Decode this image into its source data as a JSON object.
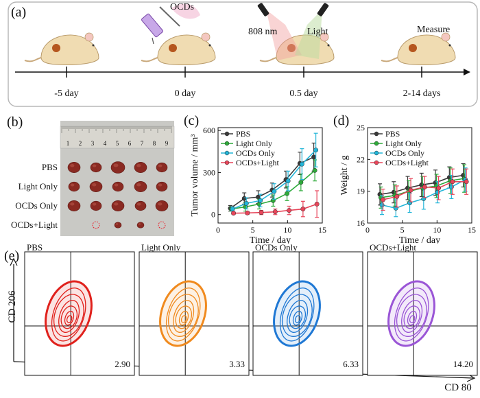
{
  "panel_a": {
    "label": "(a)",
    "injection_label": "OCDs",
    "laser_label": "808 nm",
    "light_label": "Light",
    "measure_label": "Measure",
    "timeline": [
      "-5 day",
      "0 day",
      "0.5 day",
      "2-14 days"
    ]
  },
  "panel_b": {
    "label": "(b)",
    "groups": [
      "PBS",
      "Light Only",
      "OCDs Only",
      "OCDs+Light"
    ],
    "ruler_numbers": [
      "1",
      "2",
      "3",
      "4",
      "5",
      "6",
      "7",
      "8",
      "9"
    ]
  },
  "colors": {
    "PBS": "#3a3a3a",
    "Light Only": "#2eaa3a",
    "OCDs Only": "#22b5d8",
    "OCDs+Light": "#e8455a"
  },
  "chart_data": [
    {
      "panel": "(c)",
      "type": "line",
      "xlabel": "Time / day",
      "ylabel": "Tumor volume / mm³",
      "xlim": [
        0,
        15
      ],
      "ylim": [
        -60,
        620
      ],
      "xticks": [
        0,
        5,
        10,
        15
      ],
      "yticks": [
        0,
        300,
        600
      ],
      "legend_position": "top-left",
      "x": [
        2,
        4,
        6,
        8,
        10,
        12,
        14
      ],
      "series": [
        {
          "name": "PBS",
          "values": [
            45,
            115,
            125,
            175,
            250,
            365,
            410
          ],
          "errors": [
            20,
            40,
            45,
            50,
            60,
            80,
            100
          ]
        },
        {
          "name": "Light Only",
          "values": [
            40,
            55,
            75,
            100,
            150,
            230,
            315
          ],
          "errors": [
            15,
            30,
            35,
            40,
            50,
            60,
            75
          ]
        },
        {
          "name": "OCDs Only",
          "values": [
            40,
            80,
            100,
            165,
            240,
            360,
            460
          ],
          "errors": [
            15,
            40,
            45,
            55,
            70,
            110,
            120
          ]
        },
        {
          "name": "OCDs+Light",
          "values": [
            10,
            12,
            15,
            20,
            30,
            40,
            75
          ],
          "errors": [
            8,
            10,
            15,
            20,
            30,
            55,
            95
          ]
        }
      ]
    },
    {
      "panel": "(d)",
      "type": "line",
      "xlabel": "Time / day",
      "ylabel": "Weight / g",
      "xlim": [
        0,
        15
      ],
      "ylim": [
        16,
        25
      ],
      "xticks": [
        0,
        5,
        10,
        15
      ],
      "yticks": [
        16,
        19,
        22,
        25
      ],
      "legend_position": "top-left",
      "x": [
        2,
        4,
        6,
        8,
        10,
        12,
        14
      ],
      "series": [
        {
          "name": "PBS",
          "values": [
            18.7,
            18.9,
            19.3,
            19.6,
            19.8,
            20.3,
            20.5
          ],
          "errors": [
            1.0,
            1.0,
            1.1,
            1.1,
            1.2,
            1.0,
            1.1
          ]
        },
        {
          "name": "Light Only",
          "values": [
            18.4,
            18.6,
            19.0,
            19.3,
            19.5,
            20.0,
            20.2
          ],
          "errors": [
            1.0,
            1.0,
            1.0,
            1.1,
            1.1,
            1.2,
            1.3
          ]
        },
        {
          "name": "OCDs Only",
          "values": [
            17.7,
            17.4,
            17.9,
            18.3,
            18.9,
            19.4,
            20.1
          ],
          "errors": [
            0.9,
            0.8,
            0.9,
            1.0,
            1.0,
            1.1,
            1.1
          ]
        },
        {
          "name": "OCDs+Light",
          "values": [
            18.2,
            18.5,
            19.1,
            19.4,
            19.3,
            19.9,
            19.9
          ],
          "errors": [
            1.0,
            1.0,
            1.1,
            1.0,
            1.1,
            1.2,
            1.2
          ]
        }
      ]
    }
  ],
  "panel_e": {
    "label": "(e)",
    "ylabel": "CD 206",
    "xlabel": "CD 80",
    "plots": [
      {
        "title": "PBS",
        "value": "2.90",
        "color": "#e0211c"
      },
      {
        "title": "Light Only",
        "value": "3.33",
        "color": "#f08a1e"
      },
      {
        "title": "OCDs Only",
        "value": "6.33",
        "color": "#1f78d4"
      },
      {
        "title": "OCDs+Light",
        "value": "14.20",
        "color": "#9a55d6"
      }
    ]
  }
}
